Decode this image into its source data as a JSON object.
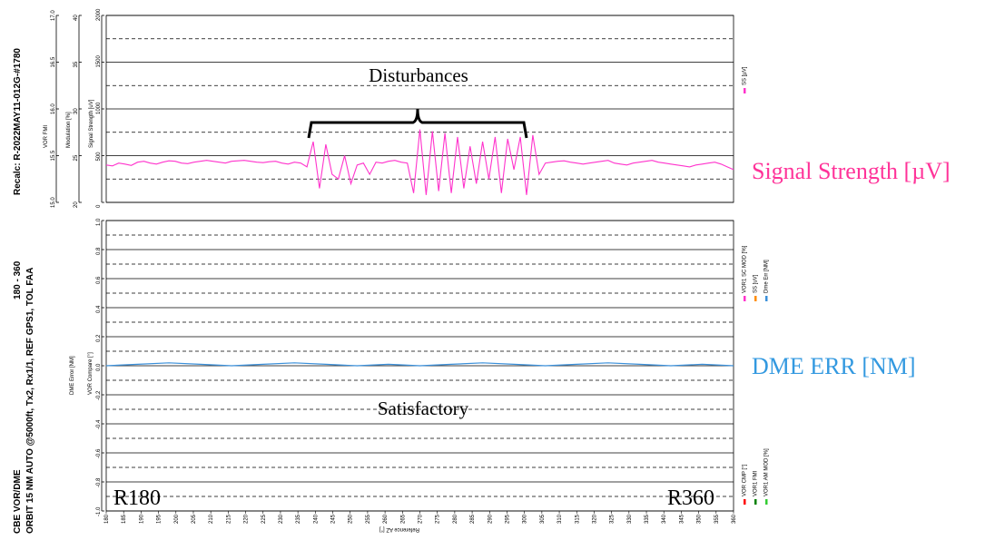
{
  "info": {
    "line1": "CBE     VOR/DME",
    "line2": "ORBIT  15 NM  AUTO @5000ft, Tx2, Rx1/1,  REF GPS1,  TOL FAA",
    "range": "180 - 360",
    "recalc": "Recalc: R-2022MAY11-012G-#1780"
  },
  "annotations": {
    "disturbances": "Disturbances",
    "satisfactory": "Satisfactory",
    "signal_strength": "Signal Strength [µV]",
    "dme_err": "DME ERR [NM]",
    "r180": "R180",
    "r360": "R360"
  },
  "colors": {
    "signal": "#ff33cc",
    "dme": "#3a8fd9",
    "signal_text": "#ff3399",
    "dme_text": "#3399e0",
    "legend_red": "#ff0000",
    "legend_orange": "#ff8c00",
    "legend_green": "#008000",
    "legend_lime": "#33cc33"
  },
  "chart_data": [
    {
      "type": "line",
      "panel": "top",
      "series": [
        {
          "name": "SS [µV]",
          "values": [
            400,
            390,
            420,
            410,
            395,
            430,
            440,
            420,
            410,
            430,
            445,
            440,
            420,
            415,
            430,
            440,
            450,
            440,
            430,
            420,
            440,
            445,
            450,
            440,
            430,
            425,
            435,
            440,
            420,
            410,
            430,
            420,
            380,
            650,
            150,
            620,
            300,
            250,
            500,
            200,
            400,
            420,
            300,
            430,
            420,
            440,
            450,
            430,
            420,
            100,
            780,
            80,
            760,
            120,
            740,
            100,
            700,
            150,
            600,
            200,
            650,
            250,
            700,
            100,
            680,
            350,
            700,
            80,
            720,
            300,
            420,
            430,
            440,
            445,
            430,
            420,
            410,
            420,
            430,
            440,
            450,
            420,
            410,
            400,
            420,
            430,
            440,
            450,
            430,
            420,
            410,
            400,
            390,
            380,
            400,
            410,
            420,
            430,
            410,
            380,
            350
          ]
        }
      ],
      "y_axes": [
        {
          "label": "Signal Strength [uV]",
          "ticks": [
            "0",
            "500",
            "1000",
            "1500",
            "2000"
          ]
        },
        {
          "label": "Modulation [%]",
          "ticks": [
            "20",
            "25",
            "30",
            "35",
            "40"
          ]
        },
        {
          "label": "VOR FMI",
          "ticks": [
            "15.0",
            "15.5",
            "16.0",
            "16.5",
            "17.0"
          ]
        }
      ],
      "ylim": [
        0,
        2000
      ],
      "legend": [
        "SS [µV]"
      ]
    },
    {
      "type": "line",
      "panel": "bottom",
      "series": [
        {
          "name": "Dme Err [NM]",
          "values": [
            0.0,
            0.01,
            0.02,
            0.01,
            0.0,
            0.01,
            0.02,
            0.01,
            0.0,
            0.01,
            0.0,
            0.01,
            0.02,
            0.01,
            0.0,
            0.01,
            0.02,
            0.01,
            0.0,
            0.01,
            0.0
          ]
        }
      ],
      "y_axes": [
        {
          "label": "DME Error [NM]",
          "ticks": [
            "-1.0",
            "-0.8",
            "-0.6",
            "-0.4",
            "-0.2",
            "0.0",
            "0.2",
            "0.4",
            "0.6",
            "0.8",
            "1.0"
          ]
        },
        {
          "label": "VOR Compare [°]"
        }
      ],
      "ylim": [
        -1.0,
        1.0
      ],
      "legend_group_1": [
        "VOR1 SC MOD [%]",
        "SS [uV]",
        "Dme Err [NM]"
      ],
      "legend_group_2": [
        "VOR CMP [°]",
        "VOR1 FMI",
        "VOR1 AM MOD [%]"
      ]
    }
  ],
  "x_axis": {
    "label": "Reference AZ [°]",
    "ticks": [
      "180",
      "185",
      "190",
      "195",
      "200",
      "205",
      "210",
      "215",
      "220",
      "225",
      "230",
      "235",
      "240",
      "245",
      "250",
      "255",
      "260",
      "265",
      "270",
      "275",
      "280",
      "285",
      "290",
      "295",
      "300",
      "305",
      "310",
      "315",
      "320",
      "325",
      "330",
      "335",
      "340",
      "345",
      "350",
      "355",
      "360"
    ],
    "range": [
      180,
      360
    ]
  }
}
